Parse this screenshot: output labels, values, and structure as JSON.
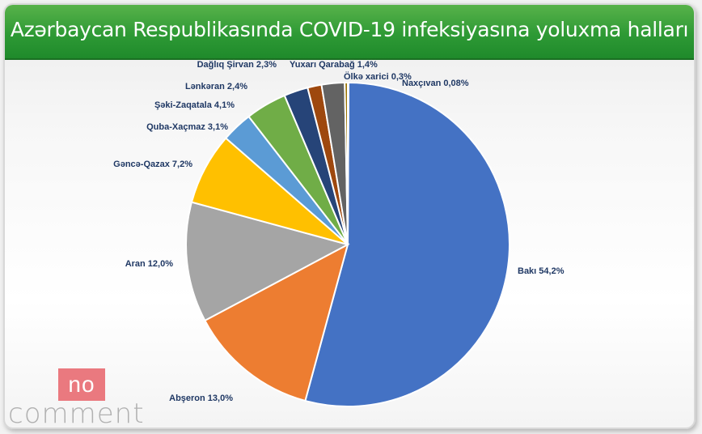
{
  "title": "Azərbaycan Respublikasında COVID-19 infeksiyasına yoluxma halları",
  "watermark": {
    "top": "no",
    "bottom": "comment"
  },
  "chart_data": {
    "type": "pie",
    "title": "Azərbaycan Respublikasında COVID-19 infeksiyasına yoluxma halları",
    "slices": [
      {
        "label": "Bakı 54,2%",
        "value": 54.2,
        "color": "#4472c4"
      },
      {
        "label": "Abşeron 13,0%",
        "value": 13.0,
        "color": "#ed7d31"
      },
      {
        "label": "Aran 12,0%",
        "value": 12.0,
        "color": "#a5a5a5"
      },
      {
        "label": "Gəncə-Qazax 7,2%",
        "value": 7.2,
        "color": "#ffc000"
      },
      {
        "label": "Quba-Xaçmaz 3,1%",
        "value": 3.1,
        "color": "#5b9bd5"
      },
      {
        "label": "Şəki-Zaqatala 4,1%",
        "value": 4.1,
        "color": "#70ad47"
      },
      {
        "label": "Lənkəran 2,4%",
        "value": 2.4,
        "color": "#264478"
      },
      {
        "label": "Yuxarı Qarabağ 1,4%",
        "value": 1.4,
        "color": "#9e480e"
      },
      {
        "label": "Dağlıq Şirvan 2,3%",
        "value": 2.3,
        "color": "#636363"
      },
      {
        "label": "Ölkə xarici 0,3%",
        "value": 0.3,
        "color": "#997300"
      },
      {
        "label": "Naxçıvan 0,08%",
        "value": 0.08,
        "color": "#255e91"
      }
    ]
  }
}
